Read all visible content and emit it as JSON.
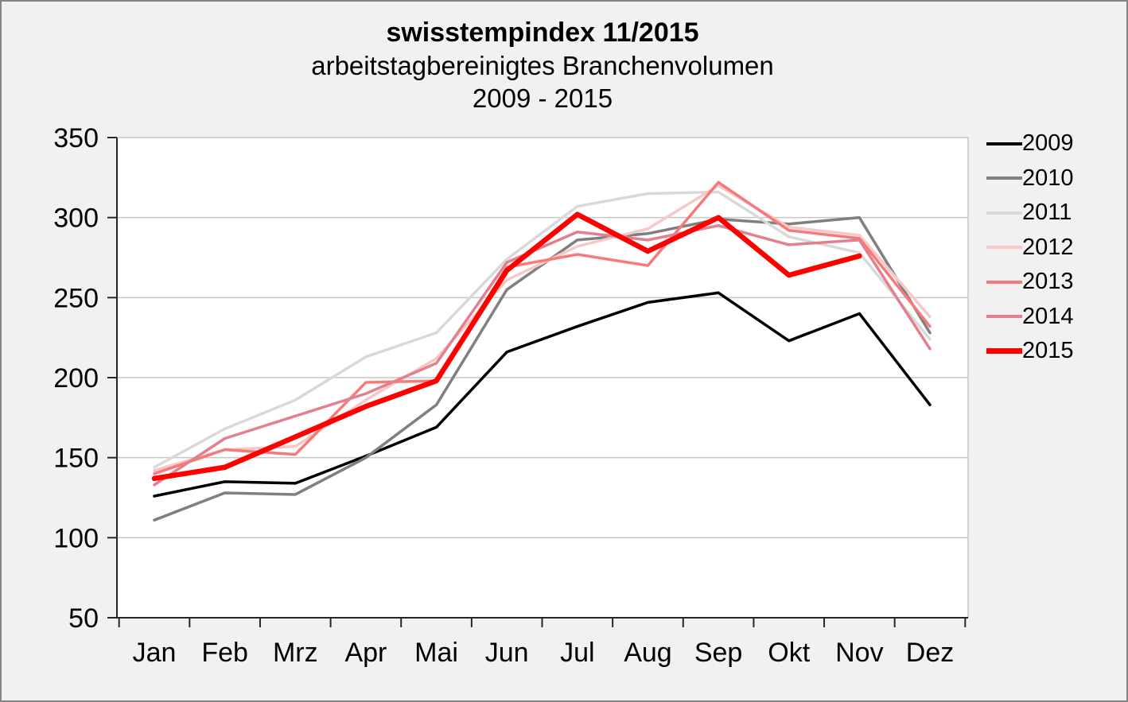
{
  "header": {
    "title": "swisstempindex 11/2015",
    "subtitle1": "arbeitstagbereinigtes Branchenvolumen",
    "subtitle2": "2009 - 2015"
  },
  "colors": {
    "canvas_background": "#f1f1f1",
    "plot_background": "#ffffff",
    "gridline": "#c6c6c6",
    "axis": "#262626",
    "outer_border": "#848484"
  },
  "chart_data": {
    "type": "line",
    "title": "swisstempindex 11/2015",
    "subtitle": "arbeitstagbereinigtes Branchenvolumen 2009 - 2015",
    "categories": [
      "Jan",
      "Feb",
      "Mrz",
      "Apr",
      "Mai",
      "Jun",
      "Jul",
      "Aug",
      "Sep",
      "Okt",
      "Nov",
      "Dez"
    ],
    "xlabel": "",
    "ylabel": "",
    "ylim": [
      50,
      350
    ],
    "ytick_step": 50,
    "grid": true,
    "legend_position": "right",
    "series": [
      {
        "name": "2009",
        "color": "#000000",
        "width": 3.5,
        "values": [
          126,
          135,
          134,
          151,
          169,
          216,
          232,
          247,
          253,
          223,
          240,
          183
        ]
      },
      {
        "name": "2010",
        "color": "#7f7f7f",
        "width": 3.5,
        "values": [
          111,
          128,
          127,
          150,
          183,
          255,
          286,
          290,
          299,
          296,
          300,
          228
        ]
      },
      {
        "name": "2011",
        "color": "#d9d9d9",
        "width": 3.5,
        "values": [
          144,
          168,
          186,
          213,
          228,
          274,
          307,
          315,
          316,
          288,
          278,
          224
        ]
      },
      {
        "name": "2012",
        "color": "#f7c8c7",
        "width": 3.5,
        "values": [
          142,
          155,
          157,
          186,
          212,
          261,
          282,
          293,
          320,
          294,
          289,
          238
        ]
      },
      {
        "name": "2013",
        "color": "#f57a79",
        "width": 3.5,
        "values": [
          140,
          155,
          152,
          197,
          198,
          269,
          277,
          270,
          322,
          292,
          287,
          232
        ]
      },
      {
        "name": "2014",
        "color": "#e2808f",
        "width": 3.5,
        "values": [
          133,
          162,
          176,
          190,
          209,
          272,
          291,
          286,
          295,
          283,
          286,
          218
        ]
      },
      {
        "name": "2015",
        "color": "#ff0000",
        "width": 6.5,
        "values": [
          137,
          144,
          163,
          182,
          198,
          267,
          302,
          279,
          300,
          264,
          276,
          null
        ]
      }
    ]
  }
}
